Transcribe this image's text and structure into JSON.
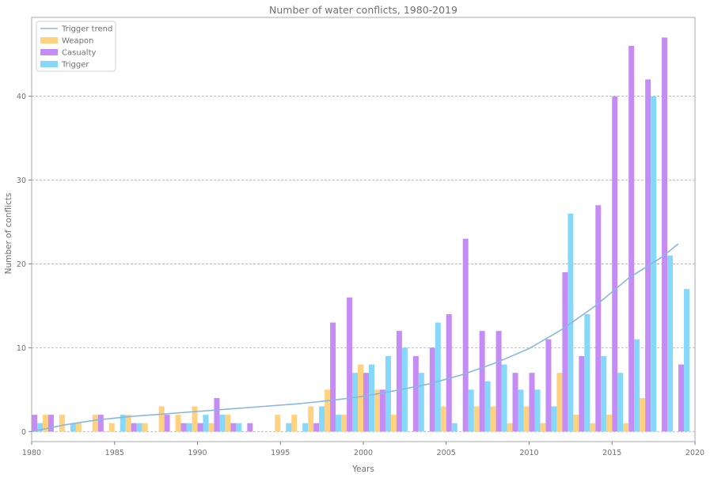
{
  "chart_data": {
    "type": "bar",
    "title": "Number of water conflicts, 1980-2019",
    "xlabel": "Years",
    "ylabel": "Number of conflicts",
    "xlim": [
      1980,
      2020
    ],
    "ylim": [
      -1.2,
      49.4
    ],
    "x_ticks": [
      1980,
      1985,
      1990,
      1995,
      2000,
      2005,
      2010,
      2015,
      2020
    ],
    "y_ticks": [
      0,
      10,
      20,
      30,
      40
    ],
    "grid": "horizontal dashed",
    "legend_position": "top-left",
    "legend": [
      "Trigger trend",
      "Weapon",
      "Casualty",
      "Trigger"
    ],
    "years": [
      1980,
      1981,
      1982,
      1983,
      1984,
      1985,
      1986,
      1987,
      1988,
      1989,
      1990,
      1991,
      1992,
      1993,
      1994,
      1995,
      1996,
      1997,
      1998,
      1999,
      2000,
      2001,
      2002,
      2003,
      2004,
      2005,
      2006,
      2007,
      2008,
      2009,
      2010,
      2011,
      2012,
      2013,
      2014,
      2015,
      2016,
      2017,
      2018,
      2019
    ],
    "series": [
      {
        "name": "Weapon",
        "color": "#ffd280",
        "values": [
          0,
          2,
          2,
          1,
          2,
          1,
          2,
          1,
          3,
          2,
          3,
          1,
          2,
          0,
          0,
          2,
          2,
          3,
          5,
          2,
          8,
          5,
          2,
          0,
          0,
          3,
          0,
          3,
          3,
          1,
          3,
          1,
          7,
          2,
          1,
          2,
          1,
          4,
          0,
          0
        ]
      },
      {
        "name": "Casualty",
        "color": "#c58cf5",
        "values": [
          2,
          2,
          0,
          0,
          2,
          0,
          1,
          0,
          2,
          1,
          1,
          4,
          1,
          1,
          0,
          0,
          0,
          1,
          13,
          16,
          7,
          5,
          12,
          9,
          10,
          14,
          23,
          12,
          12,
          7,
          7,
          11,
          19,
          9,
          27,
          40,
          46,
          42,
          47,
          8
        ]
      },
      {
        "name": "Trigger",
        "color": "#86d8fa",
        "values": [
          1,
          0,
          1,
          0,
          0,
          2,
          1,
          0,
          0,
          1,
          2,
          2,
          1,
          0,
          0,
          1,
          1,
          3,
          2,
          7,
          8,
          9,
          10,
          7,
          13,
          1,
          5,
          6,
          8,
          5,
          5,
          3,
          26,
          14,
          9,
          7,
          11,
          40,
          21,
          17
        ]
      }
    ],
    "trend": {
      "name": "Trigger trend",
      "color": "#88b8e0",
      "x": [
        1980,
        1982,
        1984,
        1986,
        1988,
        1990,
        1992,
        1994,
        1996,
        1998,
        2000,
        2002,
        2004,
        2006,
        2008,
        2010,
        2012,
        2014,
        2016,
        2018,
        2019
      ],
      "y": [
        0.0,
        0.8,
        1.4,
        1.8,
        2.1,
        2.4,
        2.7,
        3.0,
        3.3,
        3.7,
        4.2,
        4.9,
        5.7,
        6.8,
        8.2,
        9.9,
        12.2,
        15.0,
        18.3,
        20.8,
        22.4
      ]
    }
  }
}
